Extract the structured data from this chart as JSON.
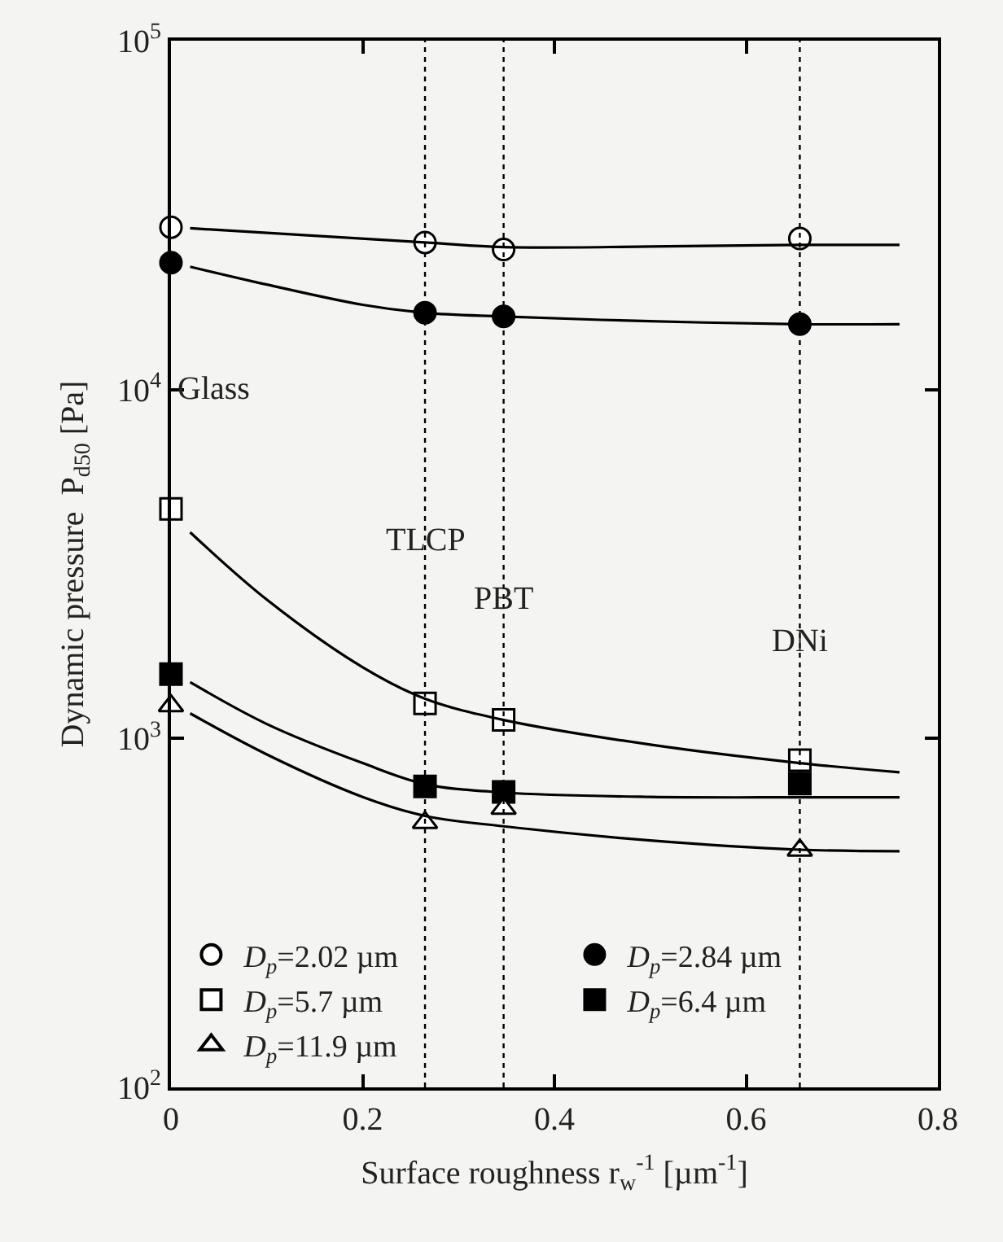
{
  "chart_data": {
    "type": "scatter",
    "xlabel": "Surface roughness r$_{w}$$^{-1}$ [µm$^{-1}$]",
    "ylabel": "Dynamic pressure  P$_{d50}$ [Pa]",
    "xlim": [
      0,
      0.8
    ],
    "xticks": [
      0,
      0.2,
      0.4,
      0.6,
      0.8
    ],
    "ylim": [
      100,
      100000
    ],
    "yticks": [
      {
        "value": 100,
        "label": "10$^{2}$"
      },
      {
        "value": 1000,
        "label": "10$^{3}$"
      },
      {
        "value": 10000,
        "label": "10$^{4}$"
      },
      {
        "value": 100000,
        "label": "10$^{5}$"
      }
    ],
    "log": "y",
    "grid": false,
    "legend": "bottom left",
    "series": [
      {
        "name": "D$_{p}$=2.02 µm",
        "color": "#ffffff",
        "marker": "circle",
        "x": [
          0,
          0.265,
          0.347,
          0.656
        ],
        "values": [
          29200,
          26400,
          25200,
          27100
        ]
      },
      {
        "name": "D$_{p}$=2.84 µm",
        "color": "#000000",
        "marker": "circle",
        "x": [
          0,
          0.265,
          0.347,
          0.656
        ],
        "values": [
          23100,
          16600,
          16200,
          15400
        ]
      },
      {
        "name": "D$_{p}$=5.7 µm",
        "color": "#ffffff",
        "marker": "square",
        "x": [
          0,
          0.265,
          0.347,
          0.656
        ],
        "values": [
          4550,
          1260,
          1130,
          867
        ]
      },
      {
        "name": "D$_{p}$=6.4 µm",
        "color": "#000000",
        "marker": "square",
        "x": [
          0,
          0.265,
          0.347,
          0.656
        ],
        "values": [
          1530,
          729,
          703,
          743
        ]
      },
      {
        "name": "D$_{p}$=11.9 µm",
        "color": "#ffffff",
        "marker": "triangle",
        "x": [
          0,
          0.265,
          0.347,
          0.656
        ],
        "values": [
          1240,
          574,
          630,
          478
        ]
      },
      {
        "type": "line",
        "color": "#000000",
        "marker": "none",
        "x": [
          0.02,
          0.265,
          0.347,
          0.5,
          0.656,
          0.76
        ],
        "values": [
          29000,
          26400,
          25600,
          25700,
          26000,
          26000
        ]
      },
      {
        "type": "line",
        "color": "#000000",
        "marker": "none",
        "x": [
          0.02,
          0.1,
          0.2,
          0.265,
          0.347,
          0.5,
          0.656,
          0.76
        ],
        "values": [
          22500,
          20000,
          17500,
          16600,
          16200,
          15700,
          15400,
          15400
        ]
      },
      {
        "type": "line",
        "color": "#000000",
        "marker": "none",
        "x": [
          0.02,
          0.1,
          0.2,
          0.265,
          0.347,
          0.5,
          0.656,
          0.76
        ],
        "values": [
          3900,
          2500,
          1600,
          1300,
          1130,
          960,
          850,
          800
        ]
      },
      {
        "type": "line",
        "color": "#000000",
        "marker": "none",
        "x": [
          0.02,
          0.1,
          0.2,
          0.265,
          0.347,
          0.5,
          0.656,
          0.76
        ],
        "values": [
          1450,
          1100,
          850,
          740,
          700,
          680,
          678,
          678
        ]
      },
      {
        "type": "line",
        "color": "#000000",
        "marker": "none",
        "x": [
          0.02,
          0.1,
          0.2,
          0.265,
          0.347,
          0.5,
          0.656,
          0.76
        ],
        "values": [
          1180,
          900,
          680,
          600,
          560,
          510,
          480,
          475
        ]
      }
    ],
    "ref_lines": [
      {
        "axis": "x",
        "value": 0.265,
        "color": "#000000",
        "line_style": "dotted"
      },
      {
        "axis": "x",
        "value": 0.347,
        "color": "#000000",
        "line_style": "dotted"
      },
      {
        "axis": "x",
        "value": 0.656,
        "color": "#000000",
        "line_style": "dotted"
      }
    ],
    "annotations": [
      "Glass",
      {
        "text": "TLCP",
        "x": 0.265,
        "y": 3700
      },
      {
        "text": "PBT",
        "x": 0.347,
        "y": 2500
      },
      {
        "text": "DNi",
        "x": 0.656,
        "y": 1900
      }
    ]
  }
}
